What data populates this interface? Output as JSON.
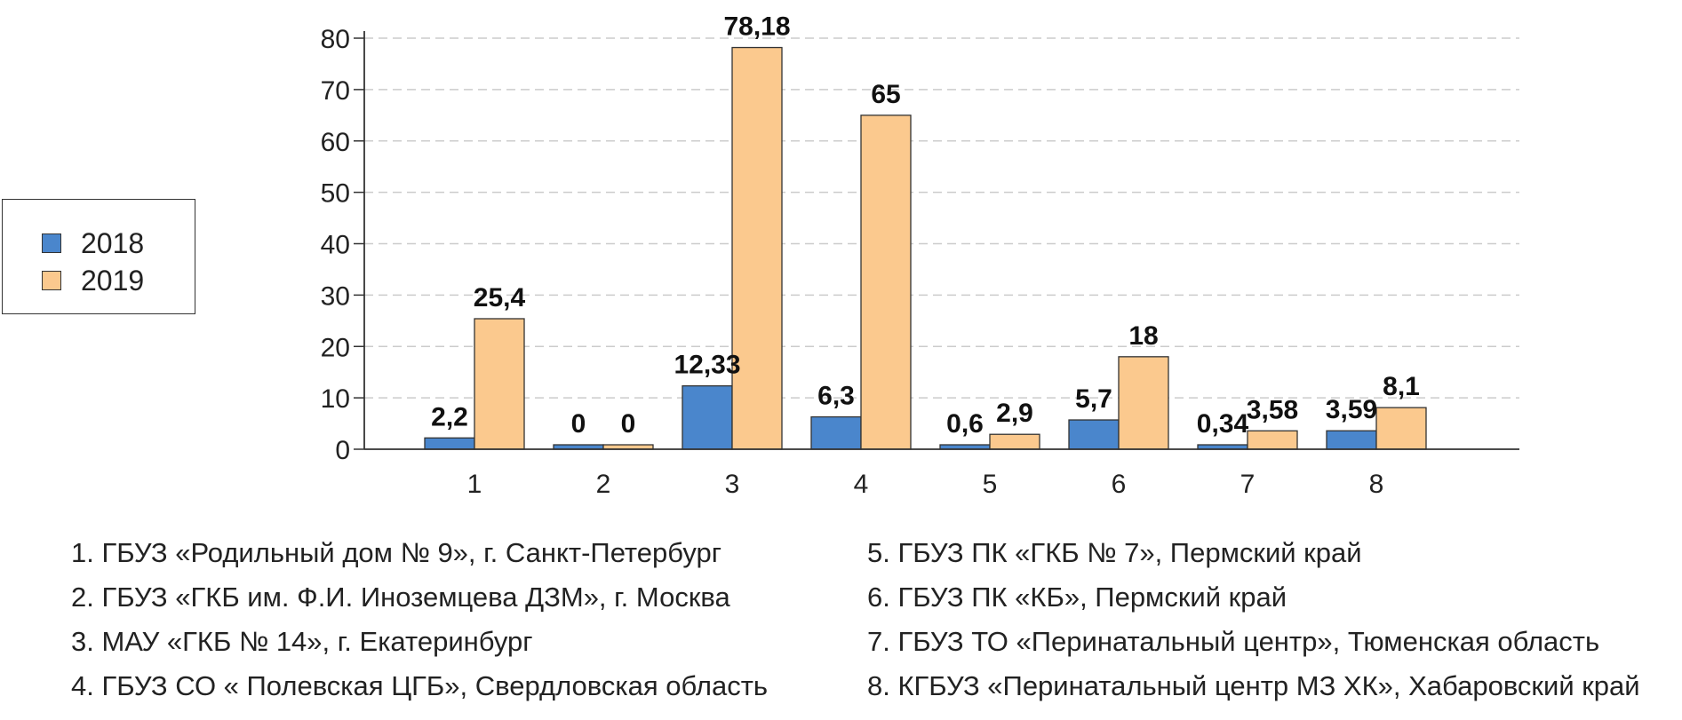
{
  "colors": {
    "series_2018": "#4a86cc",
    "series_2019": "#fbc98e",
    "grid": "#cccccc",
    "axis": "#333333"
  },
  "chart_data": {
    "type": "bar",
    "categories": [
      "1",
      "2",
      "3",
      "4",
      "5",
      "6",
      "7",
      "8"
    ],
    "series": [
      {
        "name": "2018",
        "values": [
          2.2,
          0,
          12.33,
          6.3,
          0.6,
          5.7,
          0.34,
          3.59
        ],
        "labels": [
          "2,2",
          "0",
          "12,33",
          "6,3",
          "0,6",
          "5,7",
          "0,34",
          "3,59"
        ]
      },
      {
        "name": "2019",
        "values": [
          25.4,
          0,
          78.18,
          65,
          2.9,
          18,
          3.58,
          8.1
        ],
        "labels": [
          "25,4",
          "0",
          "78,18",
          "65",
          "2,9",
          "18",
          "3,58",
          "8,1"
        ]
      }
    ],
    "yticks": [
      0,
      10,
      20,
      30,
      40,
      50,
      60,
      70,
      80
    ],
    "ylim": [
      0,
      80
    ],
    "grid": true,
    "legend_position": "left"
  },
  "legend": {
    "items": [
      "2018",
      "2019"
    ]
  },
  "notes": {
    "left": [
      "1. ГБУЗ «Родильный дом № 9», г. Санкт-Петербург",
      "2. ГБУЗ «ГКБ им. Ф.И. Иноземцева ДЗМ», г. Москва",
      "3. МАУ «ГКБ № 14», г. Екатеринбург",
      "4. ГБУЗ СО « Полевская ЦГБ», Свердловская область"
    ],
    "right": [
      "5. ГБУЗ ПК «ГКБ № 7», Пермский край",
      "6. ГБУЗ ПК «КБ», Пермский край",
      "7. ГБУЗ ТО «Перинатальный центр», Тюменская область",
      "8. КГБУЗ «Перинатальный центр МЗ ХК», Хабаровский край"
    ]
  }
}
